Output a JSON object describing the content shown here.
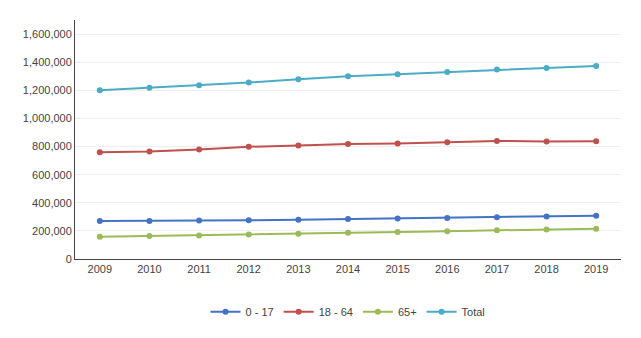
{
  "chart_data": {
    "type": "line",
    "x": [
      2009,
      2010,
      2011,
      2012,
      2013,
      2014,
      2015,
      2016,
      2017,
      2018,
      2019
    ],
    "series": [
      {
        "name": "0 - 17",
        "color": "#4472C4",
        "values": [
          270000,
          270000,
          273000,
          275000,
          280000,
          285000,
          288000,
          292000,
          297000,
          302000,
          308000
        ]
      },
      {
        "name": "18 - 64",
        "color": "#C0504D",
        "values": [
          760000,
          765000,
          778000,
          798000,
          808000,
          818000,
          822000,
          830000,
          840000,
          835000,
          838000
        ]
      },
      {
        "name": "65+",
        "color": "#9BBB59",
        "values": [
          158000,
          163000,
          168000,
          174000,
          180000,
          186000,
          192000,
          198000,
          204000,
          210000,
          216000
        ]
      },
      {
        "name": "Total",
        "color": "#4BACC6",
        "values": [
          1200000,
          1218000,
          1235000,
          1255000,
          1278000,
          1300000,
          1315000,
          1330000,
          1348000,
          1358000,
          1373000
        ]
      }
    ],
    "xlim": [
      2008.5,
      2019.5
    ],
    "xticks": [
      2009,
      2010,
      2011,
      2012,
      2013,
      2014,
      2015,
      2016,
      2017,
      2018,
      2019
    ],
    "ylim": [
      0,
      1700000
    ],
    "yticks": [
      0,
      {
        "value": 200000,
        "label": "200,000"
      },
      {
        "value": 400000,
        "label": "400,000"
      },
      {
        "value": 600000,
        "label": "600,000"
      },
      {
        "value": 800000,
        "label": "800,000"
      },
      {
        "value": 1000000,
        "label": "1,000,000"
      },
      {
        "value": 1200000,
        "label": "1,200,000"
      },
      {
        "value": 1400000,
        "label": "1,400,000"
      },
      {
        "value": 1600000,
        "label": "1,600,000"
      }
    ],
    "grid": true,
    "legend": "bottom",
    "marker": "circle"
  }
}
